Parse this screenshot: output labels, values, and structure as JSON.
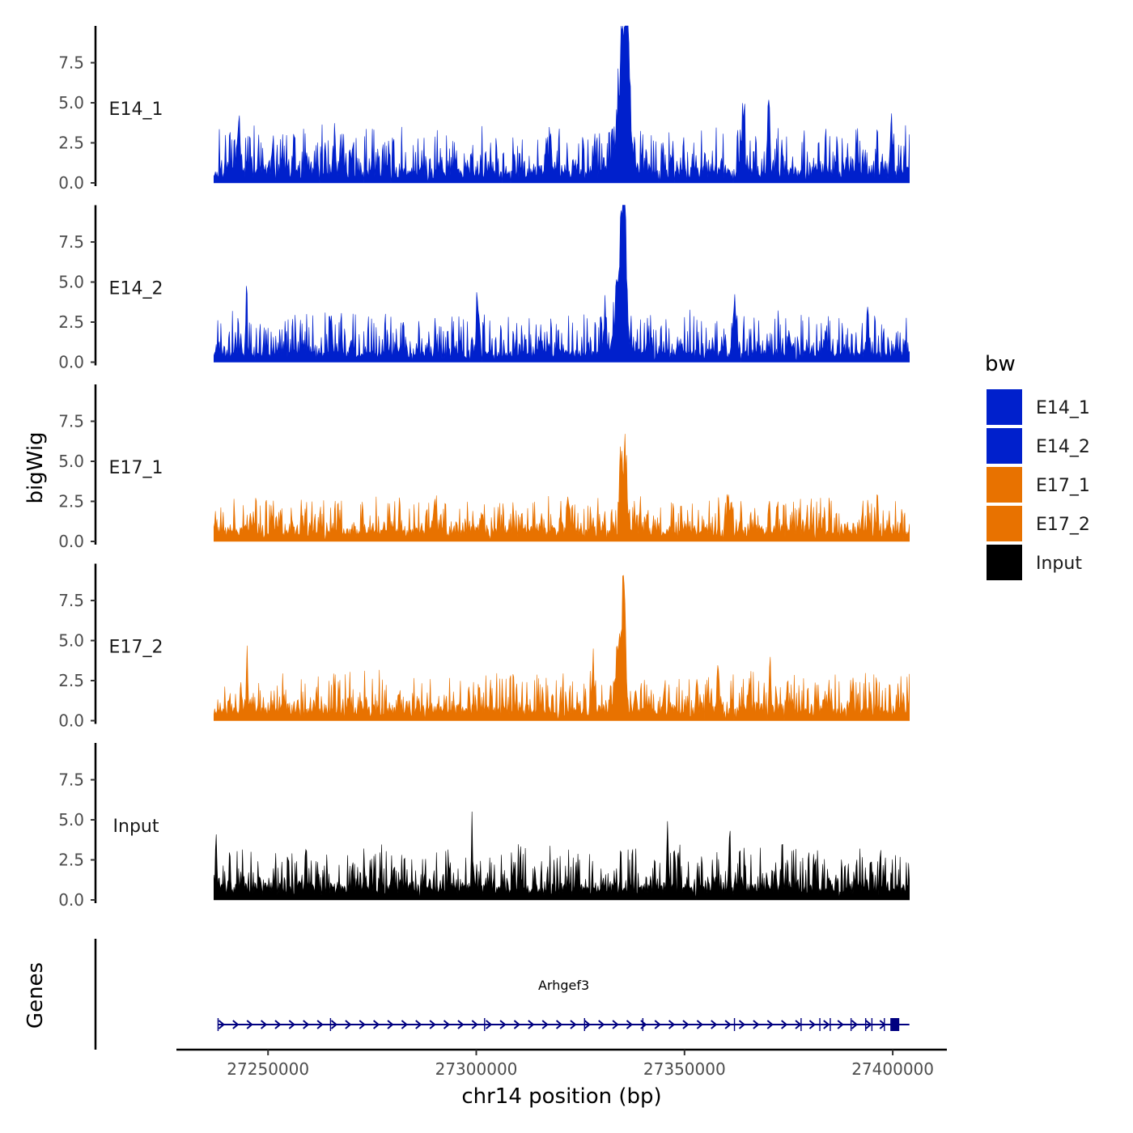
{
  "chart_data": {
    "type": "area",
    "title": "",
    "ylabel": "bigWig",
    "xlabel": "chr14 position (bp)",
    "xlim": [
      27228000,
      27413000
    ],
    "data_range": [
      27237000,
      27404000
    ],
    "ylim": [
      0,
      9.8
    ],
    "y_ticks": [
      0.0,
      2.5,
      5.0,
      7.5
    ],
    "y_tick_labels": [
      "0.0",
      "2.5",
      "5.0",
      "7.5"
    ],
    "x_ticks": [
      27250000,
      27300000,
      27350000,
      27400000
    ],
    "x_tick_labels": [
      "27250000",
      "27300000",
      "27350000",
      "27400000"
    ],
    "grid": false,
    "legend": {
      "title": "bw",
      "position": "right",
      "entries": [
        {
          "label": "E14_1",
          "color": "#0020CC"
        },
        {
          "label": "E14_2",
          "color": "#0020CC"
        },
        {
          "label": "E17_1",
          "color": "#E87200"
        },
        {
          "label": "E17_2",
          "color": "#E87200"
        },
        {
          "label": "Input",
          "color": "#000000"
        }
      ]
    },
    "series": [
      {
        "name": "E14_1",
        "color": "#0020CC",
        "baseline": 0.6,
        "noise": 1.3,
        "seed": 11,
        "peaks": [
          {
            "x": 27335200,
            "height": 8.6,
            "width": 1500
          },
          {
            "x": 27336200,
            "height": 8.9,
            "width": 700
          },
          {
            "x": 27370300,
            "height": 4.6,
            "width": 300
          },
          {
            "x": 27317800,
            "height": 3.3,
            "width": 300
          },
          {
            "x": 27364000,
            "height": 3.1,
            "width": 600
          },
          {
            "x": 27243000,
            "height": 3.0,
            "width": 500
          },
          {
            "x": 27399500,
            "height": 3.0,
            "width": 300
          },
          {
            "x": 27266000,
            "height": 2.7,
            "width": 300
          }
        ]
      },
      {
        "name": "E14_2",
        "color": "#0020CC",
        "baseline": 0.5,
        "noise": 1.2,
        "seed": 23,
        "peaks": [
          {
            "x": 27335500,
            "height": 9.6,
            "width": 500
          },
          {
            "x": 27334800,
            "height": 7.0,
            "width": 1400
          },
          {
            "x": 27244800,
            "height": 3.5,
            "width": 300
          },
          {
            "x": 27300200,
            "height": 3.6,
            "width": 300
          },
          {
            "x": 27331000,
            "height": 3.0,
            "width": 400
          },
          {
            "x": 27362000,
            "height": 2.9,
            "width": 600
          },
          {
            "x": 27394000,
            "height": 2.4,
            "width": 400
          }
        ]
      },
      {
        "name": "E17_1",
        "color": "#E87200",
        "baseline": 0.6,
        "noise": 1.0,
        "seed": 37,
        "peaks": [
          {
            "x": 27335800,
            "height": 4.5,
            "width": 700
          },
          {
            "x": 27334800,
            "height": 3.8,
            "width": 500
          },
          {
            "x": 27360500,
            "height": 2.7,
            "width": 400
          },
          {
            "x": 27322000,
            "height": 2.6,
            "width": 300
          },
          {
            "x": 27290000,
            "height": 2.3,
            "width": 400
          }
        ]
      },
      {
        "name": "E17_2",
        "color": "#E87200",
        "baseline": 0.6,
        "noise": 1.1,
        "seed": 53,
        "peaks": [
          {
            "x": 27335500,
            "height": 6.5,
            "width": 500
          },
          {
            "x": 27334500,
            "height": 4.6,
            "width": 1200
          },
          {
            "x": 27358000,
            "height": 3.6,
            "width": 300
          },
          {
            "x": 27370500,
            "height": 3.5,
            "width": 300
          },
          {
            "x": 27328000,
            "height": 2.6,
            "width": 400
          },
          {
            "x": 27353000,
            "height": 2.6,
            "width": 300
          },
          {
            "x": 27245000,
            "height": 2.5,
            "width": 300
          }
        ]
      },
      {
        "name": "Input",
        "color": "#000000",
        "baseline": 0.7,
        "noise": 1.2,
        "seed": 71,
        "peaks": [
          {
            "x": 27299000,
            "height": 3.3,
            "width": 300
          },
          {
            "x": 27237500,
            "height": 3.1,
            "width": 300
          },
          {
            "x": 27360800,
            "height": 3.2,
            "width": 300
          },
          {
            "x": 27346000,
            "height": 3.0,
            "width": 300
          },
          {
            "x": 27373500,
            "height": 3.0,
            "width": 300
          }
        ]
      }
    ],
    "genes_track": {
      "label": "Genes",
      "genes": [
        {
          "name": "Arhgef3",
          "start": 27238000,
          "end": 27404000,
          "strand": "+",
          "color": "#000080",
          "exons": [
            27238000,
            27265000,
            27302000,
            27326000,
            27340000,
            27362000,
            27378000,
            27382500,
            27385000,
            27390000,
            27393500,
            27395000,
            27398000,
            27400500
          ]
        }
      ]
    }
  }
}
